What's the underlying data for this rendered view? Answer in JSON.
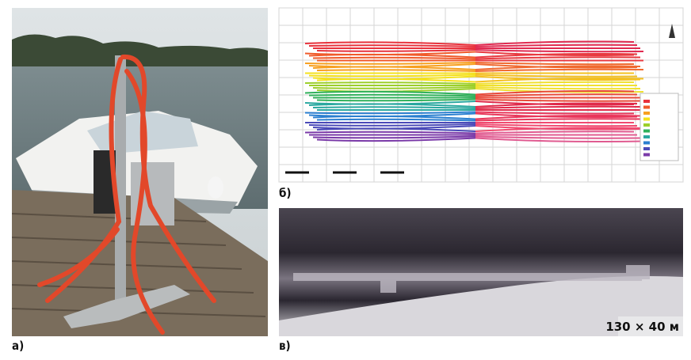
{
  "panels": [
    {
      "label": "а)"
    },
    {
      "label": "б)"
    },
    {
      "label": "в)",
      "caption": "130 × 40 м"
    }
  ]
}
